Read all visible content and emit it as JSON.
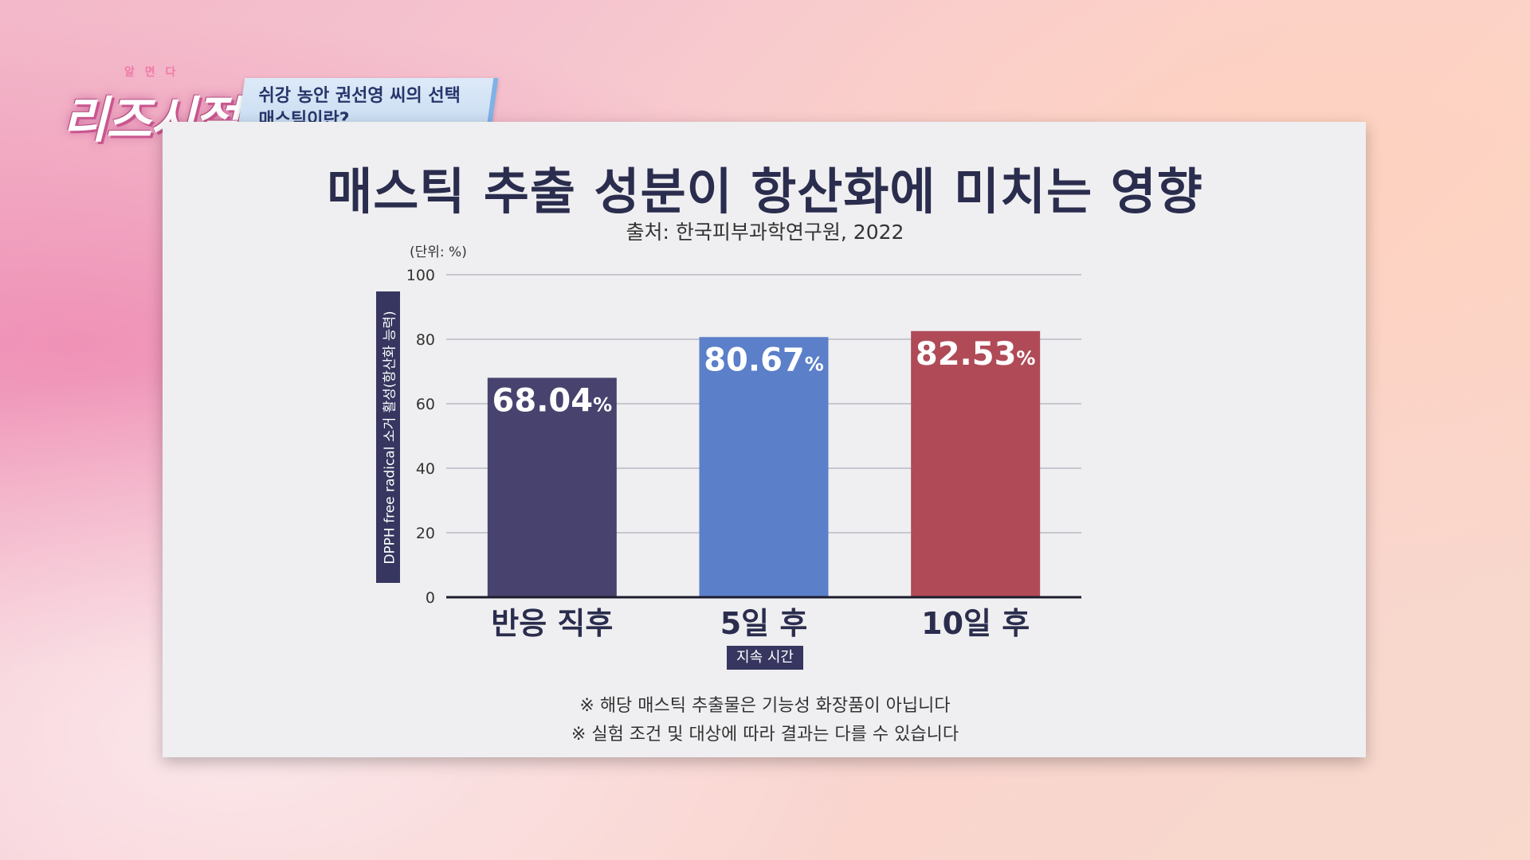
{
  "overlay": {
    "logo_small": "알 면 다",
    "logo_main": "리즈시절",
    "caption_line1": "쉬강 농안 권선영 씨의 선택",
    "caption_line2": "매스틱이란?"
  },
  "chart_data": {
    "type": "bar",
    "title": "매스틱 추출 성분이 항산화에 미치는 영향",
    "subtitle": "출처: 한국피부과학연구원, 2022",
    "unit_label": "(단위: %)",
    "ylabel": "DPPH free radical 소거 활성(항산화 능력)",
    "xlabel": "지속 시간",
    "categories": [
      "반응 직후",
      "5일 후",
      "10일 후"
    ],
    "values": [
      68.04,
      80.67,
      82.53
    ],
    "value_labels": [
      "68.04",
      "80.67",
      "82.53"
    ],
    "value_suffix": "%",
    "ylim": [
      0,
      100
    ],
    "yticks": [
      0,
      20,
      40,
      60,
      80,
      100
    ],
    "grid": true,
    "colors": [
      "#47436e",
      "#5b7fc9",
      "#b04a57"
    ]
  },
  "notes": [
    "※ 해당 매스틱 추출물은 기능성 화장품이 아닙니다",
    "※ 실험 조건 및 대상에 따라 결과는 다를 수 있습니다"
  ]
}
